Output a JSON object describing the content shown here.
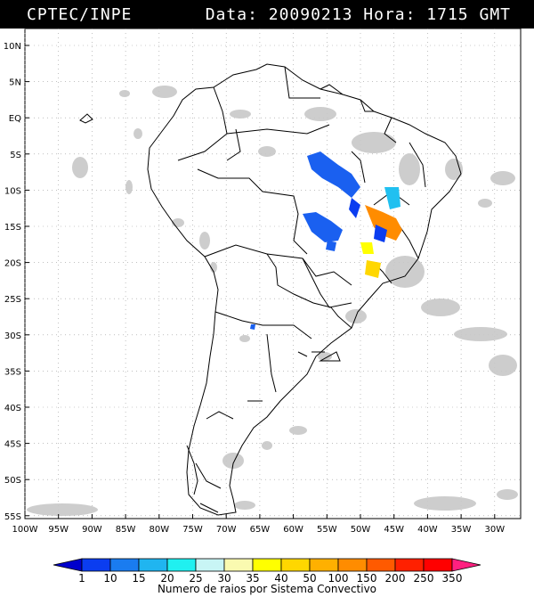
{
  "header": {
    "source": "CPTEC/INPE",
    "datetime": "Data: 20090213 Hora: 1715 GMT"
  },
  "map": {
    "lat_labels": [
      "10N",
      "5N",
      "EQ",
      "5S",
      "10S",
      "15S",
      "20S",
      "25S",
      "30S",
      "35S",
      "40S",
      "45S",
      "50S",
      "55S"
    ],
    "lon_labels": [
      "100W",
      "95W",
      "90W",
      "85W",
      "80W",
      "75W",
      "70W",
      "65W",
      "60W",
      "55W",
      "50W",
      "45W",
      "40W",
      "35W",
      "30W"
    ],
    "colors": {
      "land_outline": "#000000",
      "cloud": "#c8c8c8",
      "grid": "#9a9a9a"
    }
  },
  "legend": {
    "labels": [
      "1",
      "10",
      "15",
      "20",
      "25",
      "30",
      "35",
      "40",
      "50",
      "100",
      "150",
      "200",
      "250",
      "350"
    ],
    "colors": [
      "#0000cc",
      "#0b3df0",
      "#1a7cf0",
      "#20b5f0",
      "#20f0f0",
      "#c8f5f5",
      "#fafab0",
      "#ffff00",
      "#ffd700",
      "#ffb000",
      "#ff8c00",
      "#ff5a00",
      "#ff2000",
      "#ff0000",
      "#ff2080"
    ],
    "caption": "Numero de raios por Sistema Convectivo"
  }
}
